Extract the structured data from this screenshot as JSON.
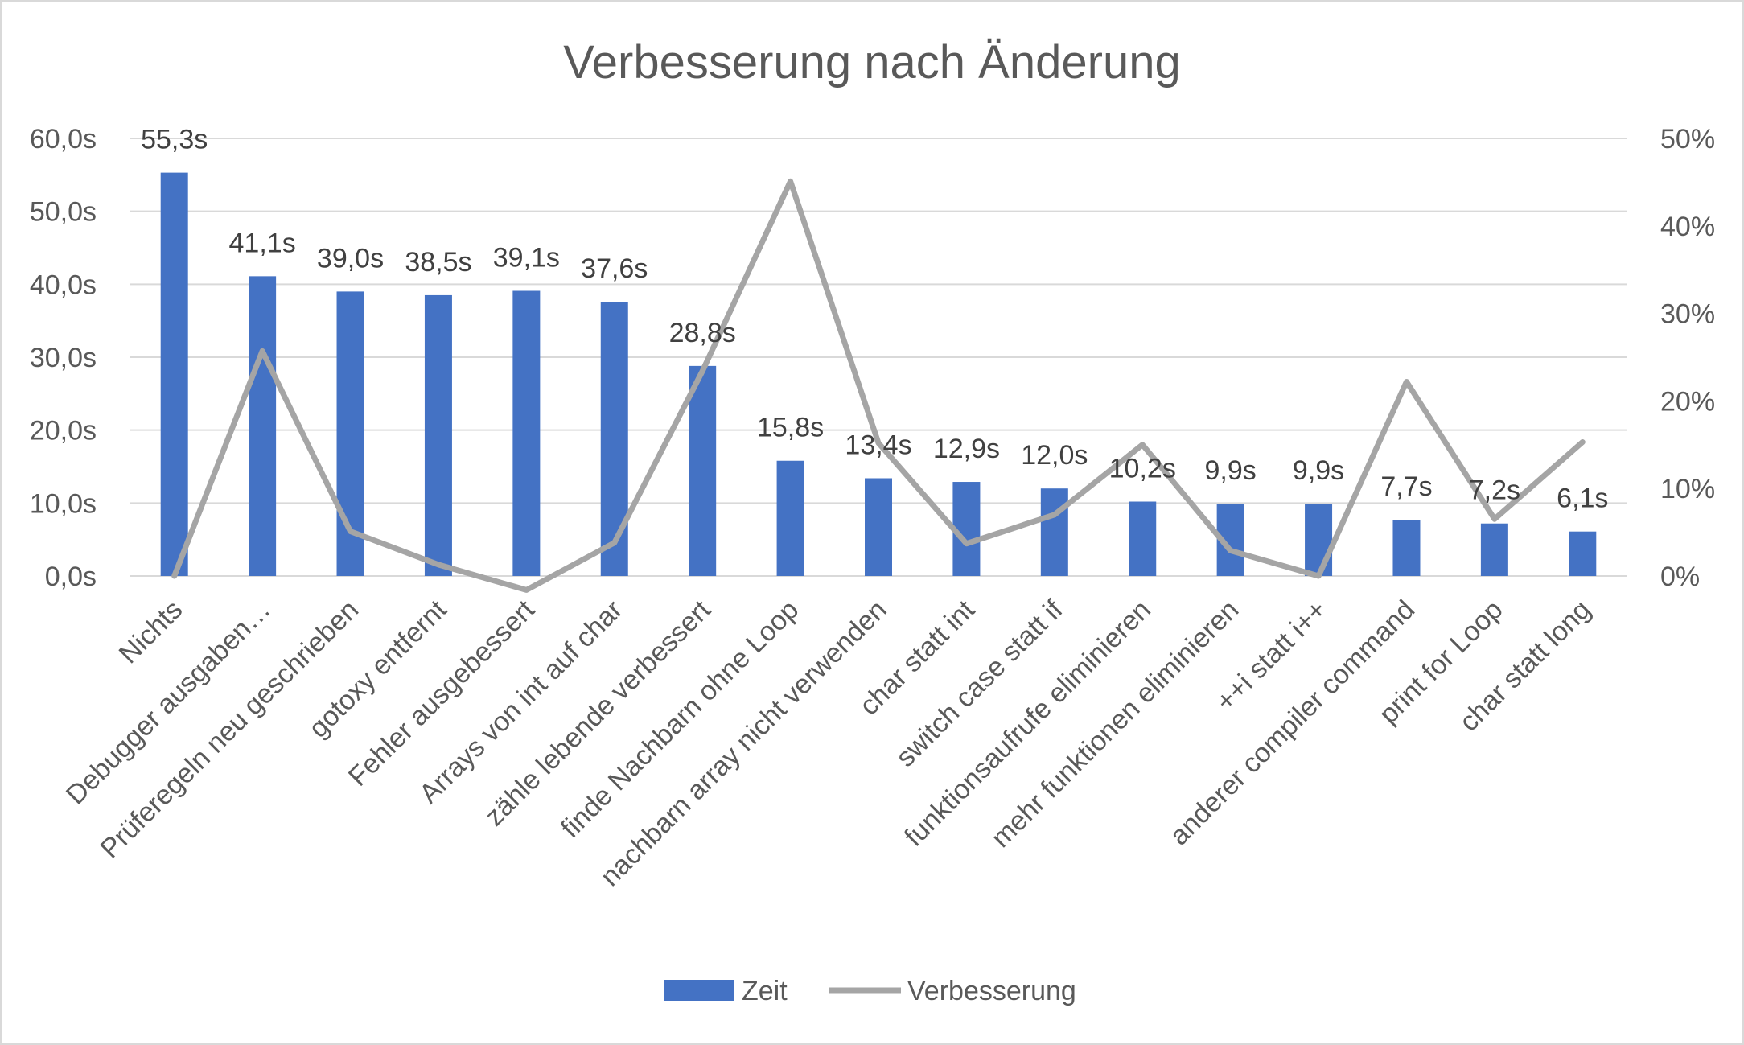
{
  "chart_data": {
    "type": "bar",
    "title": "Verbesserung nach Änderung",
    "categories": [
      "Nichts",
      "Debugger ausgaben…",
      "Prüferegeln neu geschrieben",
      "gotoxy entfernt",
      "Fehler ausgebessert",
      "Arrays von int auf char",
      "zähle lebende verbessert",
      "finde Nachbarn ohne Loop",
      "nachbarn array nicht verwenden",
      "char statt int",
      "switch case statt if",
      "funktionsaufrufe eliminieren",
      "mehr funktionen eliminieren",
      "++i statt i++",
      "anderer compiler command",
      "print for Loop",
      "char statt long"
    ],
    "series": [
      {
        "name": "Zeit",
        "type": "bar",
        "axis": "left",
        "color": "#4472C4",
        "values": [
          55.3,
          41.1,
          39.0,
          38.5,
          39.1,
          37.6,
          28.8,
          15.8,
          13.4,
          12.9,
          12.0,
          10.2,
          9.9,
          9.9,
          7.7,
          7.2,
          6.1
        ],
        "data_labels": [
          "55,3s",
          "41,1s",
          "39,0s",
          "38,5s",
          "39,1s",
          "37,6s",
          "28,8s",
          "15,8s",
          "13,4s",
          "12,9s",
          "12,0s",
          "10,2s",
          "9,9s",
          "9,9s",
          "7,7s",
          "7,2s",
          "6,1s"
        ]
      },
      {
        "name": "Verbesserung",
        "type": "line",
        "axis": "right",
        "color": "#A5A5A5",
        "values": [
          0,
          25.7,
          5.1,
          1.3,
          -1.6,
          3.8,
          23.4,
          45.1,
          15.2,
          3.7,
          7.0,
          15.0,
          2.9,
          0,
          22.2,
          6.5,
          15.3
        ]
      }
    ],
    "y_left": {
      "min": 0,
      "max": 60,
      "step": 10,
      "tick_labels": [
        "0,0s",
        "10,0s",
        "20,0s",
        "30,0s",
        "40,0s",
        "50,0s",
        "60,0s"
      ]
    },
    "y_right": {
      "min": 0,
      "max": 50,
      "step": 10,
      "tick_labels": [
        "0%",
        "10%",
        "20%",
        "30%",
        "40%",
        "50%"
      ]
    },
    "grid": true,
    "legend_position": "bottom",
    "colors": {
      "gridline": "#D9D9D9",
      "text": "#595959",
      "frame": "#D9D9D9"
    }
  }
}
